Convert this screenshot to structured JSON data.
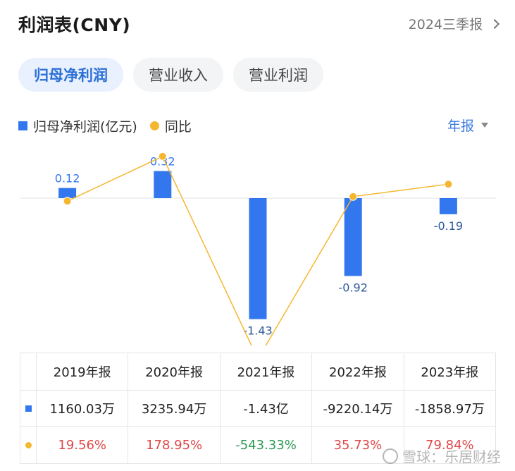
{
  "header": {
    "title": "利润表(CNY)",
    "period": "2024三季报"
  },
  "tabs": [
    {
      "label": "归母净利润",
      "active": true
    },
    {
      "label": "营业收入",
      "active": false
    },
    {
      "label": "营业利润",
      "active": false
    }
  ],
  "legend": {
    "bar": "归母净利润(亿元)",
    "line": "同比"
  },
  "frequency": "年报",
  "colors": {
    "bar": "#3377ee",
    "line": "#f5b731",
    "positive": "#e04848",
    "negative": "#2e9a55",
    "accent": "#2b6fd6"
  },
  "chart_data": {
    "type": "bar+line",
    "categories": [
      "2019年报",
      "2020年报",
      "2021年报",
      "2022年报",
      "2023年报"
    ],
    "series": [
      {
        "name": "归母净利润(亿元)",
        "type": "bar",
        "values": [
          0.12,
          0.32,
          -1.43,
          -0.92,
          -0.19
        ],
        "labels": [
          "0.12",
          "0.32",
          "-1.43",
          "-0.92",
          "-0.19"
        ]
      },
      {
        "name": "同比",
        "type": "line",
        "values": [
          19.56,
          178.95,
          -543.33,
          35.73,
          79.84
        ]
      }
    ]
  },
  "table": {
    "headers": [
      "2019年报",
      "2020年报",
      "2021年报",
      "2022年报",
      "2023年报"
    ],
    "values": [
      "1160.03万",
      "3235.94万",
      "-1.43亿",
      "-9220.14万",
      "-1858.97万"
    ],
    "yoy": [
      "19.56%",
      "178.95%",
      "-543.33%",
      "35.73%",
      "79.84%"
    ]
  },
  "watermark": "雪球：乐居财经"
}
